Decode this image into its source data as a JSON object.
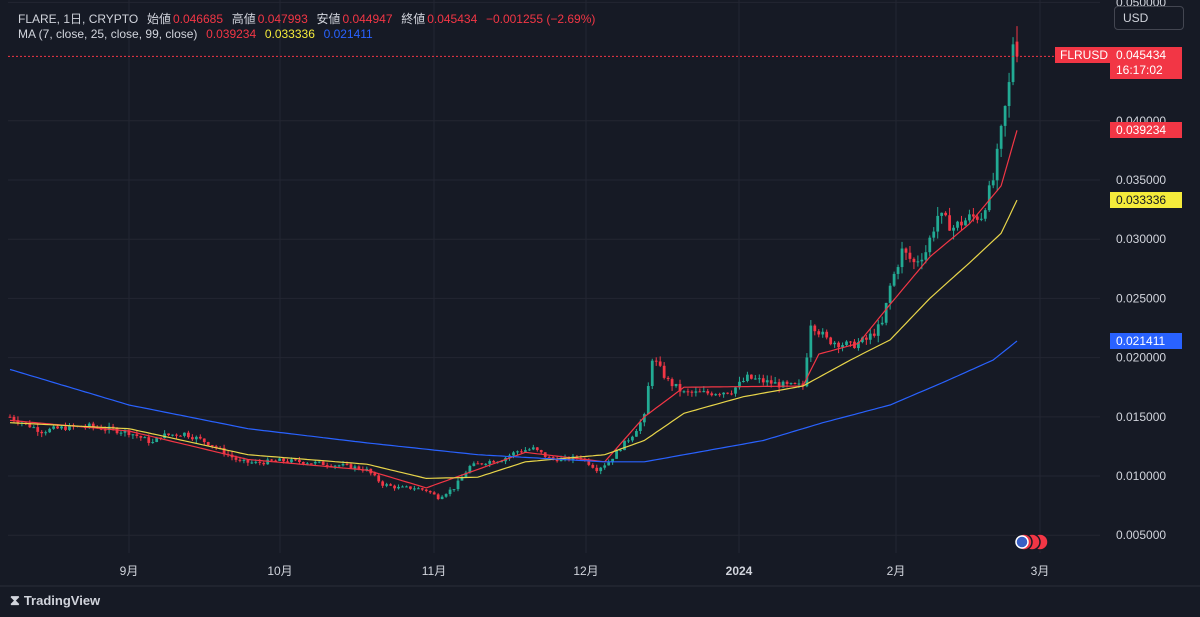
{
  "header": {
    "symbol": "FLARE, 1日, CRYPTO",
    "open_label": "始値",
    "open": "0.046685",
    "high_label": "高値",
    "high": "0.047993",
    "low_label": "安値",
    "low": "0.044947",
    "close_label": "終値",
    "close": "0.045434",
    "change": "−0.001255 (−2.69%)",
    "ma_label": "MA (7, close, 25, close, 99, close)",
    "ma7": "0.039234",
    "ma25": "0.033336",
    "ma99": "0.021411"
  },
  "currency_button": "USD",
  "price_tags": {
    "symbol": "FLRUSD",
    "current": "0.045434",
    "countdown": "16:17:02",
    "ma7": "0.039234",
    "ma25": "0.033336",
    "ma99": "0.021411"
  },
  "branding": "TradingView",
  "colors": {
    "up": "#22ab94",
    "down": "#f23645",
    "ma7": "#f23645",
    "ma25": "#e8d54a",
    "ma99": "#2962ff",
    "bg": "#161a25",
    "grid": "#232632"
  },
  "chart_data": {
    "type": "candlestick",
    "y_ticks": [
      "0.005000",
      "0.010000",
      "0.015000",
      "0.020000",
      "0.025000",
      "0.030000",
      "0.035000",
      "0.040000",
      "0.050000"
    ],
    "ylim": [
      0.0035,
      0.0502
    ],
    "x_ticks": [
      "9月",
      "10月",
      "11月",
      "12月",
      "2024",
      "2月",
      "3月"
    ],
    "grid": true,
    "candle_path": [
      [
        0,
        0.015
      ],
      [
        8,
        0.0138
      ],
      [
        14,
        0.0141
      ],
      [
        20,
        0.0142
      ],
      [
        24,
        0.014
      ],
      [
        30,
        0.0137
      ],
      [
        36,
        0.0128
      ],
      [
        38,
        0.0134
      ],
      [
        44,
        0.0136
      ],
      [
        50,
        0.0128
      ],
      [
        53,
        0.0122
      ],
      [
        58,
        0.0112
      ],
      [
        62,
        0.0111
      ],
      [
        68,
        0.0113
      ],
      [
        74,
        0.0112
      ],
      [
        80,
        0.011
      ],
      [
        86,
        0.0108
      ],
      [
        90,
        0.0105
      ],
      [
        94,
        0.0093
      ],
      [
        98,
        0.009
      ],
      [
        102,
        0.009
      ],
      [
        105,
        0.0088
      ],
      [
        108,
        0.0082
      ],
      [
        112,
        0.009
      ],
      [
        116,
        0.0108
      ],
      [
        120,
        0.0112
      ],
      [
        124,
        0.0114
      ],
      [
        128,
        0.0121
      ],
      [
        132,
        0.0123
      ],
      [
        136,
        0.0115
      ],
      [
        140,
        0.0114
      ],
      [
        144,
        0.0116
      ],
      [
        148,
        0.0106
      ],
      [
        151,
        0.0112
      ],
      [
        154,
        0.0124
      ],
      [
        157,
        0.0135
      ],
      [
        160,
        0.015
      ],
      [
        162,
        0.02
      ],
      [
        166,
        0.018
      ],
      [
        170,
        0.017
      ],
      [
        176,
        0.017
      ],
      [
        182,
        0.0172
      ],
      [
        186,
        0.0183
      ],
      [
        190,
        0.018
      ],
      [
        196,
        0.0176
      ],
      [
        200,
        0.0176
      ],
      [
        202,
        0.023
      ],
      [
        206,
        0.0215
      ],
      [
        212,
        0.021
      ],
      [
        216,
        0.0215
      ],
      [
        220,
        0.0228
      ],
      [
        222,
        0.026
      ],
      [
        225,
        0.029
      ],
      [
        228,
        0.028
      ],
      [
        231,
        0.029
      ],
      [
        234,
        0.032
      ],
      [
        238,
        0.031
      ],
      [
        242,
        0.0318
      ],
      [
        245,
        0.032
      ],
      [
        248,
        0.035
      ],
      [
        250,
        0.039
      ],
      [
        252,
        0.043
      ],
      [
        253,
        0.0467
      ],
      [
        254,
        0.04543
      ]
    ],
    "candle_count": 255,
    "series": [
      {
        "name": "MA 7",
        "color": "#f23645",
        "values": [
          [
            0,
            0.0147
          ],
          [
            30,
            0.0138
          ],
          [
            60,
            0.0114
          ],
          [
            90,
            0.0105
          ],
          [
            105,
            0.009
          ],
          [
            115,
            0.0102
          ],
          [
            130,
            0.012
          ],
          [
            150,
            0.0112
          ],
          [
            160,
            0.015
          ],
          [
            170,
            0.0175
          ],
          [
            200,
            0.0176
          ],
          [
            204,
            0.0203
          ],
          [
            214,
            0.0212
          ],
          [
            222,
            0.0245
          ],
          [
            232,
            0.0285
          ],
          [
            242,
            0.0313
          ],
          [
            250,
            0.0345
          ],
          [
            254,
            0.0392
          ]
        ]
      },
      {
        "name": "MA 25",
        "color": "#e8d54a",
        "values": [
          [
            0,
            0.0145
          ],
          [
            30,
            0.014
          ],
          [
            60,
            0.0118
          ],
          [
            90,
            0.011
          ],
          [
            105,
            0.0098
          ],
          [
            118,
            0.0099
          ],
          [
            130,
            0.0112
          ],
          [
            150,
            0.0118
          ],
          [
            160,
            0.013
          ],
          [
            170,
            0.0153
          ],
          [
            185,
            0.0167
          ],
          [
            200,
            0.0176
          ],
          [
            212,
            0.0198
          ],
          [
            222,
            0.0215
          ],
          [
            232,
            0.025
          ],
          [
            242,
            0.028
          ],
          [
            250,
            0.0305
          ],
          [
            254,
            0.0333
          ]
        ]
      },
      {
        "name": "MA 99",
        "color": "#2962ff",
        "values": [
          [
            0,
            0.019
          ],
          [
            30,
            0.016
          ],
          [
            60,
            0.014
          ],
          [
            90,
            0.0128
          ],
          [
            118,
            0.0118
          ],
          [
            150,
            0.0112
          ],
          [
            160,
            0.0112
          ],
          [
            190,
            0.013
          ],
          [
            205,
            0.0145
          ],
          [
            222,
            0.016
          ],
          [
            236,
            0.018
          ],
          [
            248,
            0.0198
          ],
          [
            254,
            0.0214
          ]
        ]
      }
    ],
    "last_price": 0.045434
  }
}
